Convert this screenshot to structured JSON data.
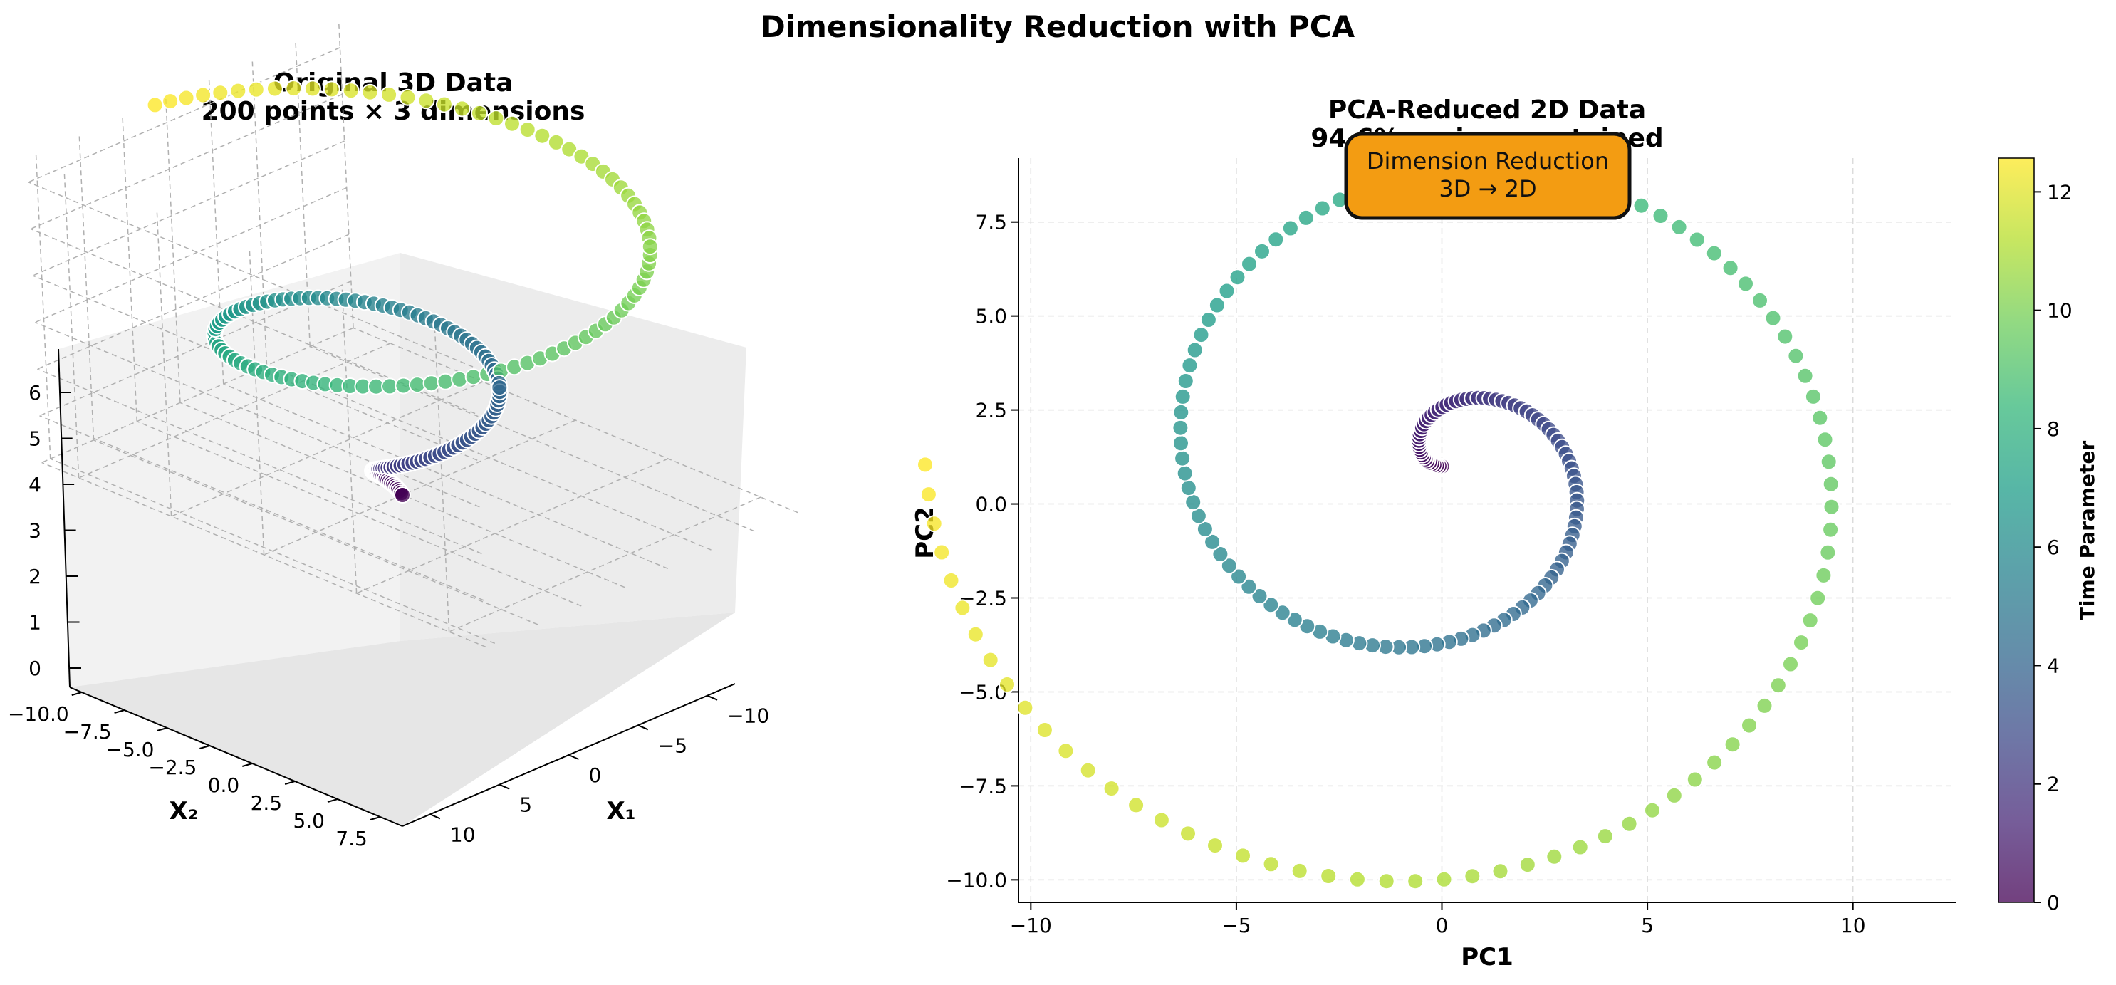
{
  "figure": {
    "suptitle": "Dimensionality Reduction with PCA"
  },
  "chart_data": [
    {
      "type": "scatter",
      "projection": "3d",
      "title_line1": "Original 3D Data",
      "title_line2": "200 points × 3 dimensions",
      "xlabel": "X₁",
      "ylabel": "X₂",
      "zlabel": "",
      "xticks": [
        "−10",
        "−5",
        "0",
        "5",
        "10"
      ],
      "yticks": [
        "−10.0",
        "−7.5",
        "−5.0",
        "−2.5",
        "0.0",
        "2.5",
        "5.0",
        "7.5"
      ],
      "zticks": [
        "0",
        "1",
        "2",
        "3",
        "4",
        "5",
        "6"
      ],
      "xlim": [
        -12,
        12
      ],
      "ylim": [
        -10,
        8
      ],
      "zlim": [
        0,
        6.5
      ],
      "colormap": "viridis",
      "color_param_range": [
        0,
        12.57
      ],
      "n_points": 200,
      "generator": "x = t*cos(t), y = t*sin(t), z = t/2, t in [0, 4π]",
      "grid": true
    },
    {
      "type": "scatter",
      "title_line1": "PCA-Reduced 2D Data",
      "title_line2": "94.6% variance retained",
      "xlabel": "PC1",
      "ylabel": "PC2",
      "xlim": [
        -10.3,
        12.5
      ],
      "ylim": [
        -10.6,
        9.2
      ],
      "xticks": [
        -10,
        -5,
        0,
        5,
        10
      ],
      "yticks": [
        -10.0,
        -7.5,
        -5.0,
        -2.5,
        0.0,
        2.5,
        5.0,
        7.5
      ],
      "xtick_labels": [
        "−10",
        "−5",
        "0",
        "5",
        "10"
      ],
      "ytick_labels": [
        "−10.0",
        "−7.5",
        "−5.0",
        "−2.5",
        "0.0",
        "2.5",
        "5.0",
        "7.5"
      ],
      "grid": true,
      "n_points": 200,
      "color_param_range": [
        0,
        12.57
      ],
      "generator": "PC1 = -t*cos(t), PC2 = t*sin(t)+1, t in [0, 4π]",
      "annotation_line1": "Dimension Reduction",
      "annotation_line2": "3D → 2D",
      "annotation_color": "#f39c12",
      "colorbar": {
        "label": "Time Parameter",
        "ticks": [
          0,
          2,
          4,
          6,
          8,
          10,
          12
        ],
        "range": [
          0,
          12.57
        ],
        "colormap": "viridis"
      }
    }
  ]
}
